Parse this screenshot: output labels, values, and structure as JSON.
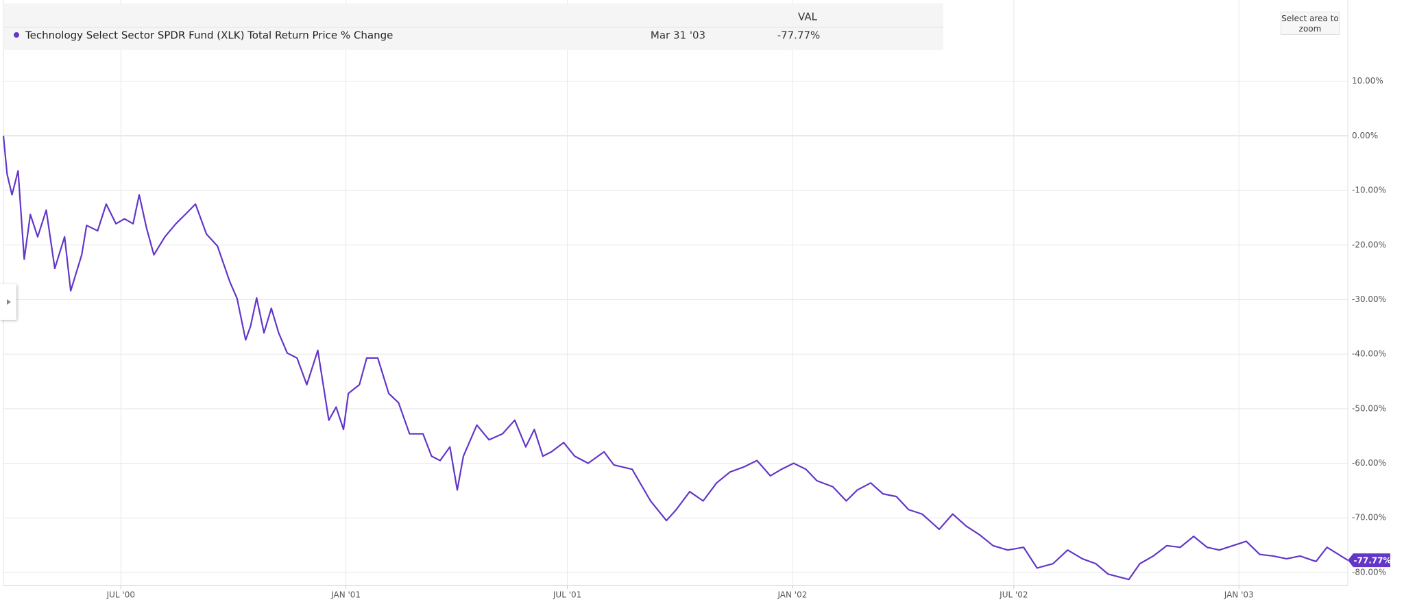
{
  "chart_data": {
    "type": "line",
    "column_header": "VAL",
    "zoom_button": "Select area to zoom",
    "hover": {
      "date": "Mar 31 '03",
      "value_label": "-77.77%"
    },
    "x": [
      "2000-03-27",
      "2000-03-30",
      "2000-04-03",
      "2000-04-08",
      "2000-04-13",
      "2000-04-18",
      "2000-04-24",
      "2000-05-01",
      "2000-05-08",
      "2000-05-16",
      "2000-05-21",
      "2000-05-30",
      "2000-06-03",
      "2000-06-12",
      "2000-06-19",
      "2000-06-27",
      "2000-07-04",
      "2000-07-11",
      "2000-07-16",
      "2000-07-22",
      "2000-07-28",
      "2000-08-06",
      "2000-08-15",
      "2000-08-24",
      "2000-08-31",
      "2000-09-09",
      "2000-09-18",
      "2000-09-28",
      "2000-10-04",
      "2000-10-11",
      "2000-10-15",
      "2000-10-20",
      "2000-10-26",
      "2000-11-01",
      "2000-11-07",
      "2000-11-14",
      "2000-11-22",
      "2000-11-30",
      "2000-12-09",
      "2000-12-18",
      "2000-12-24",
      "2000-12-30",
      "2001-01-03",
      "2001-01-12",
      "2001-01-18",
      "2001-01-27",
      "2001-02-05",
      "2001-02-13",
      "2001-02-22",
      "2001-03-05",
      "2001-03-12",
      "2001-03-19",
      "2001-03-27",
      "2001-04-02",
      "2001-04-07",
      "2001-04-18",
      "2001-04-28",
      "2001-05-09",
      "2001-05-19",
      "2001-05-28",
      "2001-06-04",
      "2001-06-11",
      "2001-06-18",
      "2001-06-28",
      "2001-07-07",
      "2001-07-18",
      "2001-07-31",
      "2001-08-08",
      "2001-08-23",
      "2001-09-07",
      "2001-09-20",
      "2001-09-28",
      "2001-10-09",
      "2001-10-20",
      "2001-10-31",
      "2001-11-11",
      "2001-11-22",
      "2001-12-03",
      "2001-12-14",
      "2001-12-23",
      "2002-01-02",
      "2002-01-12",
      "2002-01-21",
      "2002-02-03",
      "2002-02-14",
      "2002-02-23",
      "2002-03-06",
      "2002-03-16",
      "2002-03-27",
      "2002-04-06",
      "2002-04-17",
      "2002-05-01",
      "2002-05-12",
      "2002-05-23",
      "2002-06-03",
      "2002-06-14",
      "2002-06-26",
      "2002-07-09",
      "2002-07-20",
      "2002-08-02",
      "2002-08-14",
      "2002-08-26",
      "2002-09-06",
      "2002-09-16",
      "2002-10-03",
      "2002-10-12",
      "2002-10-23",
      "2002-11-03",
      "2002-11-14",
      "2002-11-25",
      "2002-12-06",
      "2002-12-16",
      "2002-12-27",
      "2003-01-07",
      "2003-01-18",
      "2003-01-29",
      "2003-02-09",
      "2003-02-20",
      "2003-03-05",
      "2003-03-14",
      "2003-03-31"
    ],
    "series": [
      {
        "name": "Technology Select Sector SPDR Fund (XLK) Total Return Price % Change",
        "color": "#6236c8",
        "values": [
          0,
          -7,
          -10.8,
          -6.4,
          -22.6,
          -14.4,
          -18.5,
          -13.6,
          -24.3,
          -18.5,
          -28.4,
          -21.8,
          -16.4,
          -17.4,
          -12.5,
          -16.1,
          -15.2,
          -16.1,
          -10.8,
          -16.9,
          -21.8,
          -18.5,
          -16.1,
          -14.1,
          -12.5,
          -18,
          -20.2,
          -26.7,
          -29.8,
          -37.4,
          -34.9,
          -29.7,
          -36.1,
          -31.6,
          -36.1,
          -39.8,
          -40.7,
          -45.6,
          -39.3,
          -52.1,
          -49.7,
          -53.8,
          -47.2,
          -45.6,
          -40.7,
          -40.7,
          -47.2,
          -48.9,
          -54.6,
          -54.6,
          -58.7,
          -59.5,
          -57,
          -64.9,
          -58.7,
          -53,
          -55.7,
          -54.6,
          -52.1,
          -57,
          -53.8,
          -58.7,
          -57.9,
          -56.2,
          -58.7,
          -60,
          -57.9,
          -60.3,
          -61.1,
          -66.9,
          -70.5,
          -68.5,
          -65.2,
          -66.9,
          -63.6,
          -61.6,
          -60.7,
          -59.5,
          -62.3,
          -61.1,
          -60,
          -61.1,
          -63.2,
          -64.3,
          -66.9,
          -64.9,
          -63.6,
          -65.6,
          -66.1,
          -68.5,
          -69.3,
          -72.1,
          -69.3,
          -71.5,
          -73.1,
          -75.1,
          -75.9,
          -75.4,
          -79.2,
          -78.4,
          -75.9,
          -77.5,
          -78.4,
          -80.3,
          -81.3,
          -78.4,
          -77,
          -75.1,
          -75.4,
          -73.4,
          -75.4,
          -75.9,
          -75.1,
          -74.3,
          -76.7,
          -77,
          -77.5,
          -77,
          -78,
          -75.4,
          -77.77
        ]
      }
    ],
    "xlim": [
      "2000-03-27",
      "2003-03-31"
    ],
    "xticks": [
      {
        "value": "2000-07-01",
        "label": "JUL '00"
      },
      {
        "value": "2001-01-01",
        "label": "JAN '01"
      },
      {
        "value": "2001-07-01",
        "label": "JUL '01"
      },
      {
        "value": "2002-01-01",
        "label": "JAN '02"
      },
      {
        "value": "2002-07-01",
        "label": "JUL '02"
      },
      {
        "value": "2003-01-01",
        "label": "JAN '03"
      }
    ],
    "ylim": [
      -82.4,
      24.9
    ],
    "yticks": [
      {
        "value": 10,
        "label": "10.00%"
      },
      {
        "value": 0,
        "label": "0.00%"
      },
      {
        "value": -10,
        "label": "-10.00%"
      },
      {
        "value": -20,
        "label": "-20.00%"
      },
      {
        "value": -30,
        "label": "-30.00%"
      },
      {
        "value": -40,
        "label": "-40.00%"
      },
      {
        "value": -50,
        "label": "-50.00%"
      },
      {
        "value": -60,
        "label": "-60.00%"
      },
      {
        "value": -70,
        "label": "-70.00%"
      },
      {
        "value": -80,
        "label": "-80.00%"
      }
    ],
    "grid": true
  }
}
